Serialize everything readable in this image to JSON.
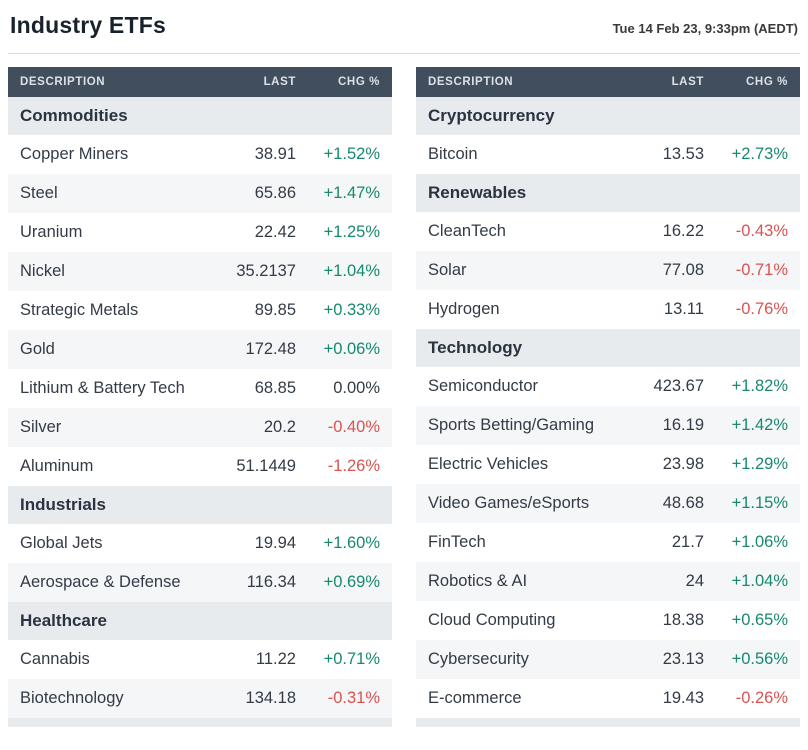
{
  "header": {
    "title": "Industry ETFs",
    "timestamp": "Tue 14 Feb 23, 9:33pm (AEDT)"
  },
  "columns": [
    "DESCRIPTION",
    "LAST",
    "CHG %"
  ],
  "colors": {
    "positive": "#17896F",
    "negative": "#D9534F",
    "header_bg": "#414E5E",
    "section_bg": "#E8EBEE",
    "alt_row_bg": "#F4F6F8"
  },
  "tables": [
    {
      "name": "left",
      "sections": [
        {
          "title": "Commodities",
          "rows": [
            {
              "description": "Copper Miners",
              "last": "38.91",
              "chg": "+1.52%"
            },
            {
              "description": "Steel",
              "last": "65.86",
              "chg": "+1.47%"
            },
            {
              "description": "Uranium",
              "last": "22.42",
              "chg": "+1.25%"
            },
            {
              "description": "Nickel",
              "last": "35.2137",
              "chg": "+1.04%"
            },
            {
              "description": "Strategic Metals",
              "last": "89.85",
              "chg": "+0.33%"
            },
            {
              "description": "Gold",
              "last": "172.48",
              "chg": "+0.06%"
            },
            {
              "description": "Lithium & Battery Tech",
              "last": "68.85",
              "chg": "0.00%"
            },
            {
              "description": "Silver",
              "last": "20.2",
              "chg": "-0.40%"
            },
            {
              "description": "Aluminum",
              "last": "51.1449",
              "chg": "-1.26%"
            }
          ]
        },
        {
          "title": "Industrials",
          "rows": [
            {
              "description": "Global Jets",
              "last": "19.94",
              "chg": "+1.60%"
            },
            {
              "description": "Aerospace & Defense",
              "last": "116.34",
              "chg": "+0.69%"
            }
          ]
        },
        {
          "title": "Healthcare",
          "rows": [
            {
              "description": "Cannabis",
              "last": "11.22",
              "chg": "+0.71%"
            },
            {
              "description": "Biotechnology",
              "last": "134.18",
              "chg": "-0.31%"
            }
          ]
        }
      ]
    },
    {
      "name": "right",
      "sections": [
        {
          "title": "Cryptocurrency",
          "rows": [
            {
              "description": "Bitcoin",
              "last": "13.53",
              "chg": "+2.73%"
            }
          ]
        },
        {
          "title": "Renewables",
          "rows": [
            {
              "description": "CleanTech",
              "last": "16.22",
              "chg": "-0.43%"
            },
            {
              "description": "Solar",
              "last": "77.08",
              "chg": "-0.71%"
            },
            {
              "description": "Hydrogen",
              "last": "13.11",
              "chg": "-0.76%"
            }
          ]
        },
        {
          "title": "Technology",
          "rows": [
            {
              "description": "Semiconductor",
              "last": "423.67",
              "chg": "+1.82%"
            },
            {
              "description": "Sports Betting/Gaming",
              "last": "16.19",
              "chg": "+1.42%"
            },
            {
              "description": "Electric Vehicles",
              "last": "23.98",
              "chg": "+1.29%"
            },
            {
              "description": "Video Games/eSports",
              "last": "48.68",
              "chg": "+1.15%"
            },
            {
              "description": "FinTech",
              "last": "21.7",
              "chg": "+1.06%"
            },
            {
              "description": "Robotics & AI",
              "last": "24",
              "chg": "+1.04%"
            },
            {
              "description": "Cloud Computing",
              "last": "18.38",
              "chg": "+0.65%"
            },
            {
              "description": "Cybersecurity",
              "last": "23.13",
              "chg": "+0.56%"
            },
            {
              "description": "E-commerce",
              "last": "19.43",
              "chg": "-0.26%"
            }
          ]
        }
      ]
    }
  ]
}
